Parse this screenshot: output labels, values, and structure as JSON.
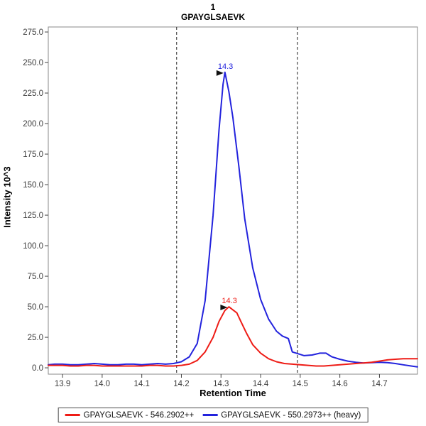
{
  "chart_data": {
    "type": "line",
    "title": "1",
    "subtitle": "GPAYGLSAEVK",
    "xlabel": "Retention Time",
    "ylabel": "Intensity 10^3",
    "xlim": [
      13.864,
      14.796
    ],
    "ylim": [
      -5.2,
      279.1
    ],
    "x_tick_labels": [
      "13.9",
      "14.0",
      "14.1",
      "14.2",
      "14.3",
      "14.4",
      "14.5",
      "14.6",
      "14.7"
    ],
    "y_tick_labels": [
      "0.0",
      "25.0",
      "50.0",
      "75.0",
      "100.0",
      "125.0",
      "150.0",
      "175.0",
      "200.0",
      "225.0",
      "250.0",
      "275.0"
    ],
    "grid": false,
    "legend_position": "bottom",
    "frame_color": "#8a8a8a",
    "tick_label_color": "#3d3d3d",
    "integration_boundaries": [
      14.188,
      14.493
    ],
    "boundary_color": "#1f1f1f",
    "annotation_arrow_color": "#111111",
    "series": [
      {
        "name": "GPAYGLSAEVK - 546.2902++",
        "color": "#ee1c16",
        "peak_annotation": {
          "label": "14.3",
          "x": 14.32,
          "y": 50
        },
        "points": [
          [
            13.864,
            2
          ],
          [
            13.88,
            2
          ],
          [
            13.9,
            2
          ],
          [
            13.92,
            1.5
          ],
          [
            13.94,
            1.5
          ],
          [
            13.96,
            2
          ],
          [
            13.98,
            2
          ],
          [
            14.0,
            1.5
          ],
          [
            14.02,
            1.5
          ],
          [
            14.04,
            1.5
          ],
          [
            14.06,
            1.5
          ],
          [
            14.08,
            1.5
          ],
          [
            14.1,
            1.5
          ],
          [
            14.12,
            2
          ],
          [
            14.14,
            2
          ],
          [
            14.16,
            1.5
          ],
          [
            14.18,
            1.5
          ],
          [
            14.2,
            2
          ],
          [
            14.22,
            3
          ],
          [
            14.24,
            6
          ],
          [
            14.26,
            13
          ],
          [
            14.28,
            25
          ],
          [
            14.295,
            38
          ],
          [
            14.31,
            47
          ],
          [
            14.32,
            50
          ],
          [
            14.33,
            47.5
          ],
          [
            14.34,
            45
          ],
          [
            14.35,
            38
          ],
          [
            14.365,
            28
          ],
          [
            14.38,
            19
          ],
          [
            14.4,
            12
          ],
          [
            14.42,
            7.5
          ],
          [
            14.44,
            5
          ],
          [
            14.46,
            3.5
          ],
          [
            14.48,
            3
          ],
          [
            14.5,
            2.5
          ],
          [
            14.52,
            2
          ],
          [
            14.54,
            1.5
          ],
          [
            14.56,
            1.5
          ],
          [
            14.58,
            2
          ],
          [
            14.6,
            2.5
          ],
          [
            14.62,
            3
          ],
          [
            14.64,
            3.5
          ],
          [
            14.66,
            4
          ],
          [
            14.68,
            4.5
          ],
          [
            14.7,
            5.5
          ],
          [
            14.72,
            6.5
          ],
          [
            14.74,
            7
          ],
          [
            14.76,
            7.5
          ],
          [
            14.78,
            7.5
          ],
          [
            14.796,
            7.5
          ]
        ]
      },
      {
        "name": "GPAYGLSAEVK - 550.2973++ (heavy)",
        "color": "#2323dd",
        "peak_annotation": {
          "label": "14.3",
          "x": 14.31,
          "y": 242
        },
        "points": [
          [
            13.864,
            2.5
          ],
          [
            13.88,
            3
          ],
          [
            13.9,
            3
          ],
          [
            13.92,
            2.5
          ],
          [
            13.94,
            2.5
          ],
          [
            13.96,
            3
          ],
          [
            13.98,
            3.5
          ],
          [
            14.0,
            3
          ],
          [
            14.02,
            2.5
          ],
          [
            14.04,
            2.5
          ],
          [
            14.06,
            3
          ],
          [
            14.08,
            3
          ],
          [
            14.1,
            2.5
          ],
          [
            14.12,
            3
          ],
          [
            14.14,
            3.5
          ],
          [
            14.16,
            3
          ],
          [
            14.18,
            3.5
          ],
          [
            14.2,
            5
          ],
          [
            14.22,
            9
          ],
          [
            14.24,
            20
          ],
          [
            14.26,
            55
          ],
          [
            14.28,
            125
          ],
          [
            14.295,
            195
          ],
          [
            14.305,
            232
          ],
          [
            14.31,
            242
          ],
          [
            14.32,
            226
          ],
          [
            14.33,
            205
          ],
          [
            14.345,
            165
          ],
          [
            14.36,
            122
          ],
          [
            14.38,
            82
          ],
          [
            14.4,
            56
          ],
          [
            14.42,
            40
          ],
          [
            14.44,
            30
          ],
          [
            14.455,
            26
          ],
          [
            14.47,
            24
          ],
          [
            14.48,
            13
          ],
          [
            14.495,
            11.5
          ],
          [
            14.51,
            10
          ],
          [
            14.53,
            10.5
          ],
          [
            14.55,
            12
          ],
          [
            14.565,
            12
          ],
          [
            14.58,
            9
          ],
          [
            14.6,
            7
          ],
          [
            14.62,
            5.5
          ],
          [
            14.64,
            4.5
          ],
          [
            14.66,
            4
          ],
          [
            14.68,
            4.2
          ],
          [
            14.7,
            4.5
          ],
          [
            14.72,
            4.2
          ],
          [
            14.74,
            3.5
          ],
          [
            14.76,
            2.5
          ],
          [
            14.78,
            1.5
          ],
          [
            14.796,
            0.8
          ]
        ]
      }
    ]
  }
}
